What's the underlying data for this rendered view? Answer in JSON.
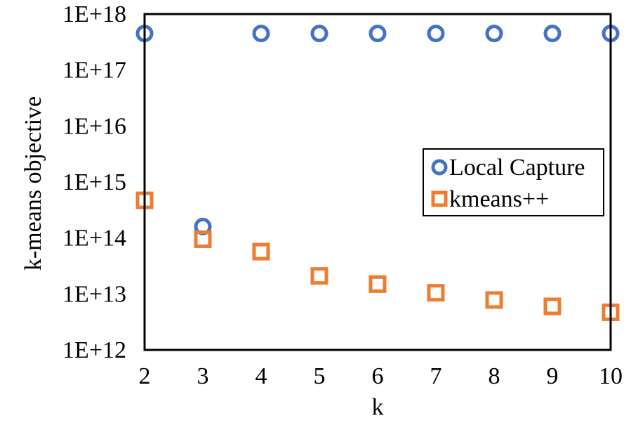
{
  "chart_data": {
    "type": "scatter",
    "title": "",
    "xlabel": "k",
    "ylabel": "k-means objective",
    "x_ticks": [
      "2",
      "3",
      "4",
      "5",
      "6",
      "7",
      "8",
      "9",
      "10"
    ],
    "y_ticks": [
      "1E+12",
      "1E+13",
      "1E+14",
      "1E+15",
      "1E+16",
      "1E+17",
      "1E+18"
    ],
    "xlim": [
      2,
      10
    ],
    "ylim": [
      1000000000000.0,
      1e+18
    ],
    "y_scale": "log",
    "grid": false,
    "legend_position": "right",
    "series": [
      {
        "name": "Local Capture",
        "marker": "circle",
        "color": "#4472C4",
        "x": [
          2,
          3,
          4,
          5,
          6,
          7,
          8,
          9,
          10
        ],
        "y": [
          4.5e+17,
          160000000000000.0,
          4.5e+17,
          4.5e+17,
          4.5e+17,
          4.5e+17,
          4.5e+17,
          4.5e+17,
          4.5e+17
        ]
      },
      {
        "name": "kmeans++",
        "marker": "square",
        "color": "#ED7D31",
        "x": [
          2,
          3,
          4,
          5,
          6,
          7,
          8,
          9,
          10
        ],
        "y": [
          470000000000000.0,
          95000000000000.0,
          57000000000000.0,
          21000000000000.0,
          15000000000000.0,
          10500000000000.0,
          7800000000000.0,
          6000000000000.0,
          4700000000000.0
        ]
      }
    ]
  }
}
